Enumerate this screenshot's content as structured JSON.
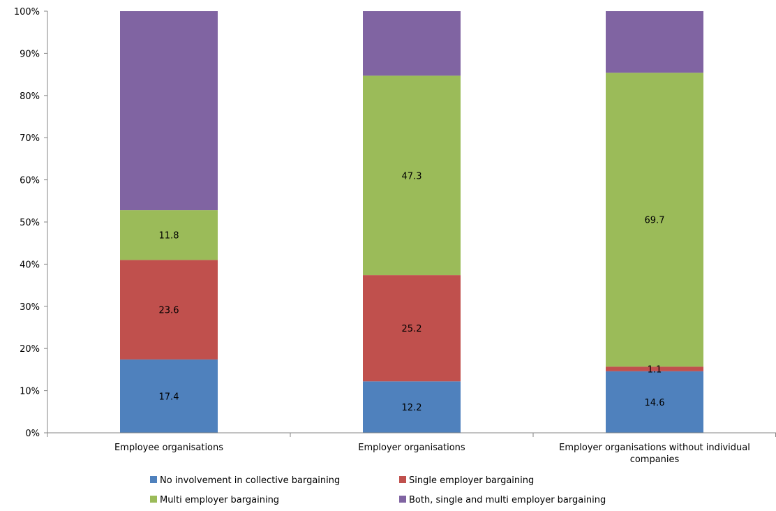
{
  "chart_data": {
    "type": "bar",
    "stacked": true,
    "percent": true,
    "categories": [
      "Employee organisations",
      "Employer organisations",
      "Employer organisations without individual companies"
    ],
    "category_lines": [
      [
        "Employee organisations"
      ],
      [
        "Employer organisations"
      ],
      [
        "Employer organisations without individual",
        "companies"
      ]
    ],
    "series": [
      {
        "name": "No involvement in collective bargaining",
        "color": "#4f81bd",
        "values": [
          17.4,
          12.2,
          14.6
        ],
        "labels": [
          "17.4",
          "12.2",
          "14.6"
        ]
      },
      {
        "name": "Single employer bargaining",
        "color": "#c0504d",
        "values": [
          23.6,
          25.2,
          1.1
        ],
        "labels": [
          "23.6",
          "25.2",
          "1.1"
        ]
      },
      {
        "name": "Multi employer bargaining",
        "color": "#9bbb59",
        "values": [
          11.8,
          47.3,
          69.7
        ],
        "labels": [
          "11.8",
          "47.3",
          "69.7"
        ]
      },
      {
        "name": "Both, single and multi employer bargaining",
        "color": "#8064a2",
        "values": [
          47.2,
          15.3,
          14.6
        ],
        "labels": [
          "",
          "",
          ""
        ]
      }
    ],
    "ylim": [
      0,
      100
    ],
    "yticks": [
      "0%",
      "10%",
      "20%",
      "30%",
      "40%",
      "50%",
      "60%",
      "70%",
      "80%",
      "90%",
      "100%"
    ],
    "grid": false,
    "legend": "bottom",
    "title": "",
    "xlabel": "",
    "ylabel": ""
  }
}
